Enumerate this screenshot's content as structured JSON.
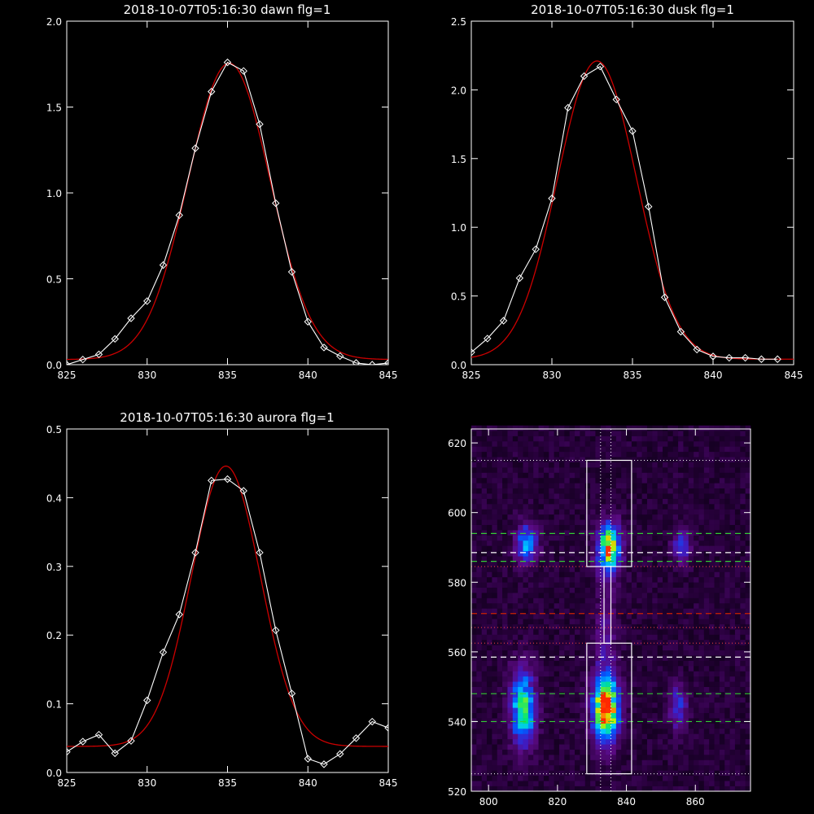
{
  "chart_data": [
    {
      "id": "dawn",
      "type": "line",
      "title": "2018-10-07T05:16:30 dawn flg=1",
      "xlim": [
        825,
        845
      ],
      "ylim": [
        0,
        2.0
      ],
      "xticks": [
        825,
        830,
        835,
        840,
        845
      ],
      "xtick_labels": [
        "825",
        "830",
        "835",
        "840",
        "845"
      ],
      "yticks": [
        0,
        0.5,
        1.0,
        1.5,
        2.0
      ],
      "ytick_labels": [
        "0.0",
        "0.5",
        "1.0",
        "1.5",
        "2.0"
      ],
      "colors": {
        "observed": "#ffffff",
        "fit": "#cc0000"
      },
      "series": [
        {
          "x": [
            825,
            826,
            827,
            828,
            829,
            830,
            831,
            832,
            833,
            834,
            835,
            836,
            837,
            838,
            839,
            840,
            841,
            842,
            843,
            844,
            845
          ],
          "values": [
            0.0,
            0.03,
            0.06,
            0.15,
            0.27,
            0.37,
            0.58,
            0.87,
            1.26,
            1.59,
            1.76,
            1.71,
            1.4,
            0.94,
            0.54,
            0.25,
            0.1,
            0.05,
            0.01,
            0.0,
            0.01
          ]
        }
      ],
      "fit": {
        "amplitude": 1.725,
        "center": 835.1,
        "sigma": 2.55,
        "offset": 0.03
      }
    },
    {
      "id": "dusk",
      "type": "line",
      "title": "2018-10-07T05:16:30 dusk flg=1",
      "xlim": [
        825,
        845
      ],
      "ylim": [
        0,
        2.5
      ],
      "xticks": [
        825,
        830,
        835,
        840,
        845
      ],
      "xtick_labels": [
        "825",
        "830",
        "835",
        "840",
        "845"
      ],
      "yticks": [
        0,
        0.5,
        1.0,
        1.5,
        2.0,
        2.5
      ],
      "ytick_labels": [
        "0.0",
        "0.5",
        "1.0",
        "1.5",
        "2.0",
        "2.5"
      ],
      "colors": {
        "observed": "#ffffff",
        "fit": "#cc0000"
      },
      "series": [
        {
          "x": [
            825,
            826,
            827,
            828,
            829,
            830,
            831,
            832,
            833,
            834,
            835,
            836,
            837,
            838,
            839,
            840,
            841,
            842,
            843,
            844
          ],
          "values": [
            0.09,
            0.19,
            0.32,
            0.63,
            0.84,
            1.21,
            1.87,
            2.1,
            2.17,
            1.93,
            1.7,
            1.15,
            0.49,
            0.24,
            0.11,
            0.06,
            0.05,
            0.05,
            0.04,
            0.04
          ]
        }
      ],
      "fit": {
        "amplitude": 2.17,
        "center": 832.8,
        "sigma": 2.45,
        "offset": 0.04
      }
    },
    {
      "id": "aurora",
      "type": "line",
      "title": "2018-10-07T05:16:30 aurora flg=1",
      "xlim": [
        825,
        845
      ],
      "ylim": [
        0,
        0.5
      ],
      "xticks": [
        825,
        830,
        835,
        840,
        845
      ],
      "xtick_labels": [
        "825",
        "830",
        "835",
        "840",
        "845"
      ],
      "yticks": [
        0,
        0.1,
        0.2,
        0.3,
        0.4,
        0.5
      ],
      "ytick_labels": [
        "0.0",
        "0.1",
        "0.2",
        "0.3",
        "0.4",
        "0.5"
      ],
      "colors": {
        "observed": "#ffffff",
        "fit": "#cc0000"
      },
      "series": [
        {
          "x": [
            825,
            826,
            827,
            828,
            829,
            830,
            831,
            832,
            833,
            834,
            835,
            836,
            837,
            838,
            839,
            840,
            841,
            842,
            843,
            844,
            845
          ],
          "values": [
            0.03,
            0.045,
            0.055,
            0.028,
            0.046,
            0.105,
            0.175,
            0.23,
            0.32,
            0.425,
            0.427,
            0.41,
            0.32,
            0.207,
            0.115,
            0.02,
            0.012,
            0.027,
            0.05,
            0.074,
            0.065
          ]
        }
      ],
      "fit": {
        "amplitude": 0.408,
        "center": 834.9,
        "sigma": 2.15,
        "offset": 0.038
      }
    },
    {
      "id": "image",
      "type": "heatmap",
      "title": "",
      "xlim": [
        795,
        876
      ],
      "ylim": [
        520,
        624
      ],
      "xticks": [
        800,
        820,
        840,
        860
      ],
      "xtick_labels": [
        "800",
        "820",
        "840",
        "860"
      ],
      "yticks": [
        520,
        540,
        560,
        580,
        600,
        620
      ],
      "ytick_labels": [
        "520",
        "540",
        "560",
        "580",
        "600",
        "620"
      ],
      "colors": {
        "box": "#ffffff",
        "dotted_white": "#ffffff",
        "dotted_red": "#ff4444",
        "dashed_green": "#33cc33",
        "dashed_white": "#ffffff",
        "dashed_red": "#cc2200"
      },
      "blobs": [
        {
          "x": 811,
          "y": 591,
          "sx": 2.2,
          "sy": 4.0,
          "amp": 0.55
        },
        {
          "x": 810,
          "y": 544,
          "sx": 2.5,
          "sy": 7.5,
          "amp": 0.75
        },
        {
          "x": 835,
          "y": 590,
          "sx": 2.5,
          "sy": 5.0,
          "amp": 0.85
        },
        {
          "x": 834,
          "y": 544,
          "sx": 2.8,
          "sy": 7.0,
          "amp": 1.0
        },
        {
          "x": 856,
          "y": 590,
          "sx": 1.8,
          "sy": 3.5,
          "amp": 0.4
        },
        {
          "x": 855,
          "y": 544,
          "sx": 1.8,
          "sy": 4.5,
          "amp": 0.38
        },
        {
          "x": 834,
          "y": 567,
          "sx": 2.2,
          "sy": 8.0,
          "amp": 0.22
        }
      ],
      "boxes": [
        {
          "x0": 828.5,
          "x1": 841.5,
          "y0": 584.5,
          "y1": 615
        },
        {
          "x0": 828.5,
          "x1": 841.5,
          "y0": 525,
          "y1": 562.5
        },
        {
          "x0": 833.5,
          "x1": 835.5,
          "y0": 562.5,
          "y1": 584.5
        }
      ],
      "hlines_dotted_white": [
        615,
        525
      ],
      "hlines_dotted_red": [
        584.5,
        567,
        562.5
      ],
      "vlines_dotted_white": [
        832.5,
        835.5
      ],
      "hlines_dashed_green": [
        594,
        586,
        548,
        540
      ],
      "hlines_dashed_white": [
        588.5,
        558.5
      ],
      "hlines_dashed_red": [
        571
      ]
    }
  ]
}
